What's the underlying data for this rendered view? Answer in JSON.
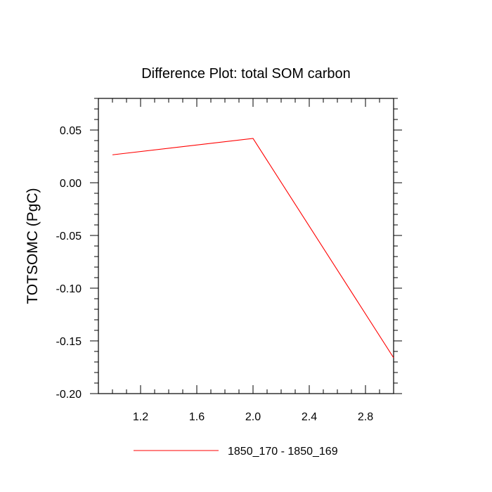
{
  "chart_data": {
    "type": "line",
    "title": "Difference Plot: total SOM carbon",
    "xlabel": "",
    "ylabel": "TOTSOMC  (PgC)",
    "xlim": [
      0.9,
      3.0
    ],
    "ylim": [
      -0.2,
      0.08
    ],
    "x_ticks": [
      1.2,
      1.6,
      2.0,
      2.4,
      2.8
    ],
    "x_tick_labels": [
      "1.2",
      "1.6",
      "2.0",
      "2.4",
      "2.8"
    ],
    "y_ticks": [
      -0.2,
      -0.15,
      -0.1,
      -0.05,
      0.0,
      0.05
    ],
    "y_tick_labels": [
      "-0.20",
      "-0.15",
      "-0.10",
      "-0.05",
      "0.00",
      "0.05"
    ],
    "x_minor_step": 0.1,
    "y_minor_step": 0.01,
    "grid": false,
    "legend_position": "bottom-center",
    "series": [
      {
        "name": "1850_170 - 1850_169",
        "color": "#ff0000",
        "x": [
          1.0,
          2.0,
          3.0
        ],
        "y": [
          0.0265,
          0.042,
          -0.166
        ]
      }
    ]
  }
}
